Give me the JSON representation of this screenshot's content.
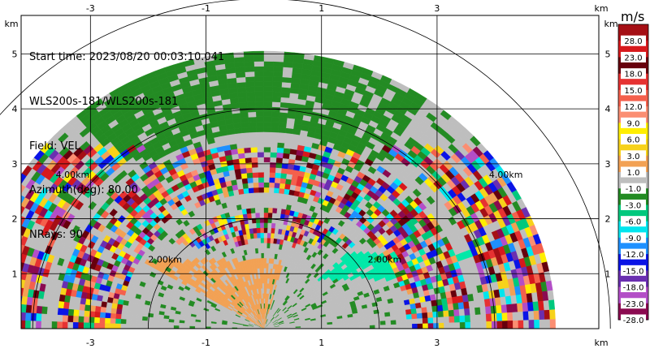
{
  "info": {
    "start_time": "Start time: 2023/08/20 00:03:10.041",
    "instrument": "WLS200s-181/WLS200s-181",
    "field": "Field: VEL",
    "azimuth": "Azimuth(deg): 80.00",
    "nrays": "NRays: 90"
  },
  "chart_data": {
    "type": "heatmap",
    "plot_kind": "radar-rhi-sector",
    "x_ticks": [
      "-3",
      "-1",
      "1",
      "3"
    ],
    "x_tick_values": [
      -3,
      -1,
      1,
      3
    ],
    "x_unit": "km",
    "y_ticks": [
      "1",
      "2",
      "3",
      "4",
      "5"
    ],
    "y_tick_values": [
      1,
      2,
      3,
      4,
      5
    ],
    "y_unit": "km",
    "xlim": [
      -4.2,
      5.8
    ],
    "ylim": [
      0,
      5.7
    ],
    "grid": true,
    "max_range_km": 5.05,
    "range_rings_km": [
      2,
      4,
      6
    ],
    "range_ring_labels": [
      {
        "text": "2.00km",
        "x": -2.0,
        "y": 1.2
      },
      {
        "text": "2.00km",
        "x": 1.8,
        "y": 1.2
      },
      {
        "text": "4.00km",
        "x": -3.6,
        "y": 2.75
      },
      {
        "text": "4.00km",
        "x": 3.9,
        "y": 2.75
      }
    ],
    "colorbar": {
      "title": "m/s",
      "tick_labels": [
        "28.0",
        "23.0",
        "18.0",
        "15.0",
        "12.0",
        "9.0",
        "6.0",
        "3.0",
        "1.0",
        "-1.0",
        "-3.0",
        "-6.0",
        "-9.0",
        "-12.0",
        "-15.0",
        "-18.0",
        "-23.0",
        "-28.0"
      ],
      "colors": [
        "#a50f15",
        "#d7191c",
        "#67000d",
        "#e63232",
        "#f4604c",
        "#fb8e72",
        "#ffee00",
        "#f7d21a",
        "#f2a154",
        "#bebebe",
        "#238b23",
        "#00c87d",
        "#00e5ee",
        "#1e90ff",
        "#0a14e6",
        "#6a2fb0",
        "#b34ec7",
        "#8b0a50"
      ]
    },
    "regions": [
      {
        "label": "near-zero",
        "value": 0.0,
        "color": "#bebebe"
      },
      {
        "label": "weak-negative-band",
        "value": -2.0,
        "color": "#238b23"
      },
      {
        "label": "weak-positive-near",
        "value": 2.0,
        "color": "#f2a154"
      },
      {
        "label": "negative-core",
        "value": -7.0,
        "color": "#00e5ae"
      },
      {
        "label": "noisy-far-range",
        "value": null,
        "color": "mixed"
      }
    ]
  }
}
